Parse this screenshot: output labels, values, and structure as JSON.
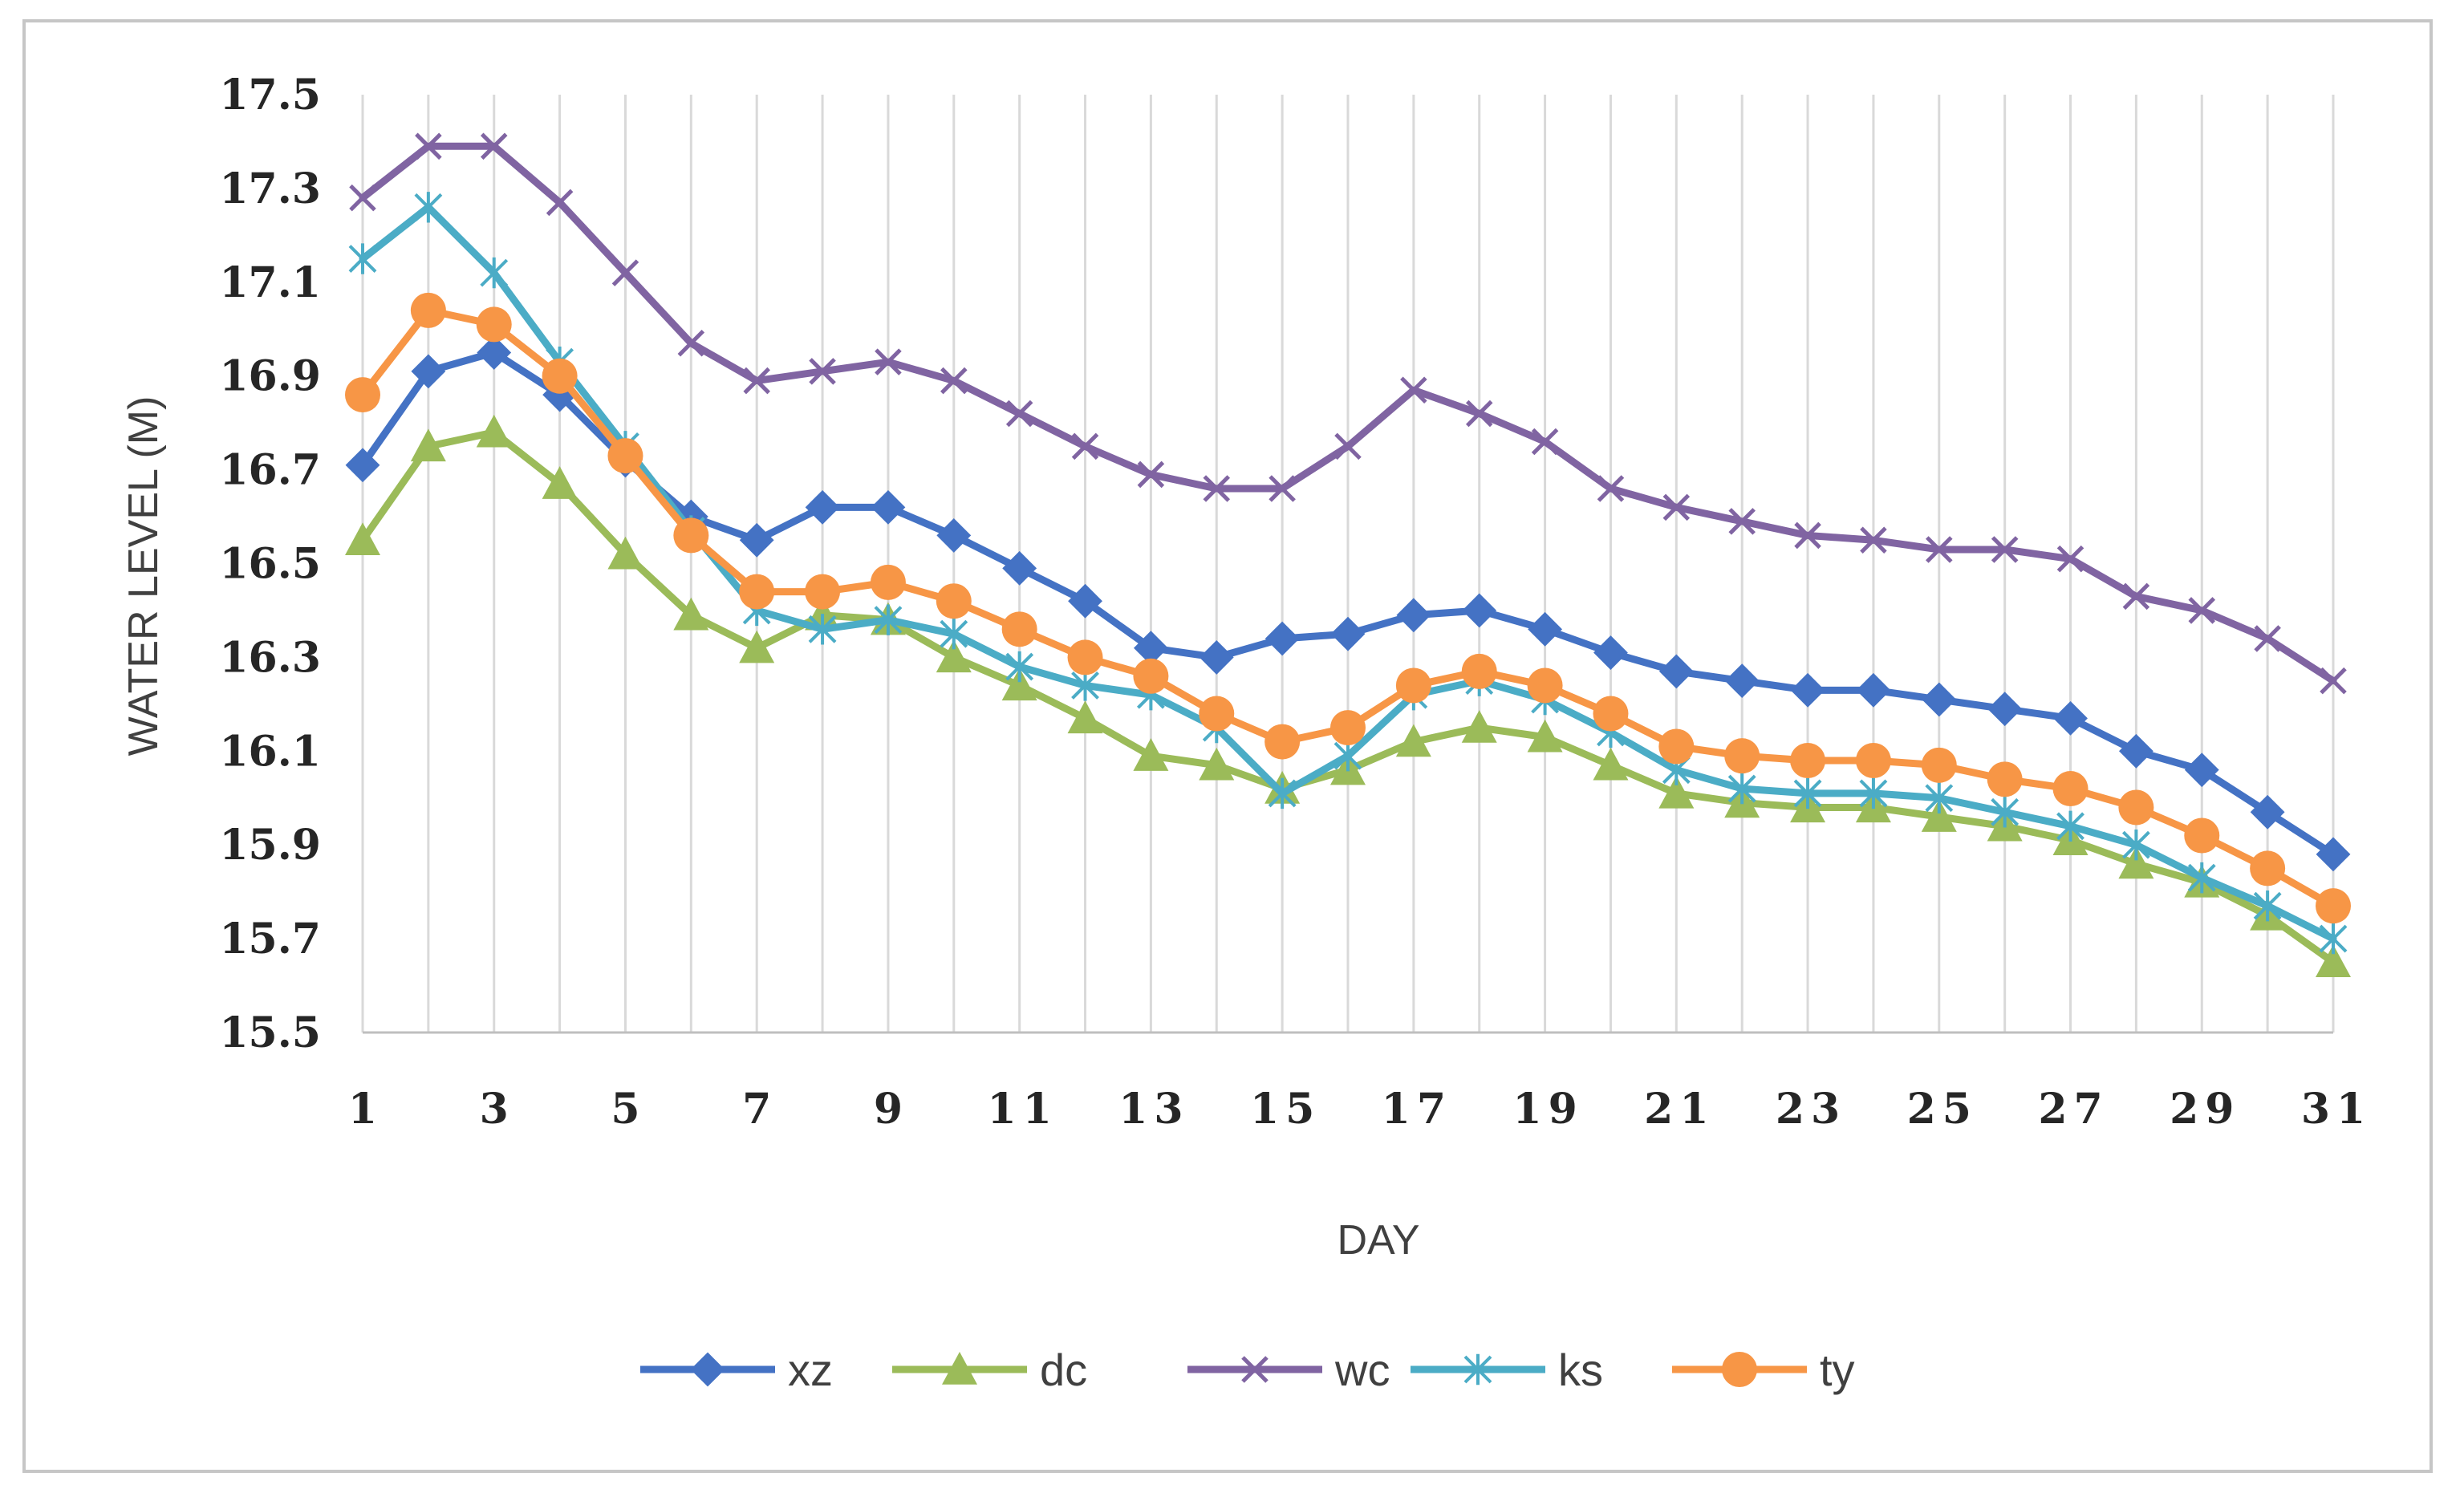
{
  "chart_data": {
    "type": "line",
    "title": "",
    "xlabel": "DAY",
    "ylabel": "WATER LEVEL (M)",
    "ylim": [
      15.5,
      17.5
    ],
    "yticks": [
      "15.5",
      "15.7",
      "15.9",
      "16.1",
      "16.3",
      "16.5",
      "16.7",
      "16.9",
      "17.1",
      "17.3",
      "17.5"
    ],
    "x": [
      1,
      2,
      3,
      4,
      5,
      6,
      7,
      8,
      9,
      10,
      11,
      12,
      13,
      14,
      15,
      16,
      17,
      18,
      19,
      20,
      21,
      22,
      23,
      24,
      25,
      26,
      27,
      28,
      29,
      30,
      31
    ],
    "xtick_labels": [
      "1",
      "3",
      "5",
      "7",
      "9",
      "11",
      "13",
      "15",
      "17",
      "19",
      "21",
      "23",
      "25",
      "27",
      "29",
      "31"
    ],
    "grid": "vertical",
    "legend_position": "bottom",
    "series": [
      {
        "name": "xz",
        "color": "#4472c4",
        "marker": "diamond",
        "values": [
          16.71,
          16.91,
          16.95,
          16.86,
          16.72,
          16.6,
          16.55,
          16.62,
          16.62,
          16.56,
          16.49,
          16.42,
          16.32,
          16.3,
          16.34,
          16.35,
          16.39,
          16.4,
          16.36,
          16.31,
          16.27,
          16.25,
          16.23,
          16.23,
          16.21,
          16.19,
          16.17,
          16.1,
          16.06,
          15.97,
          15.88
        ]
      },
      {
        "name": "dc",
        "color": "#9bbb59",
        "marker": "triangle",
        "values": [
          16.55,
          16.75,
          16.78,
          16.67,
          16.52,
          16.39,
          16.32,
          16.39,
          16.38,
          16.3,
          16.24,
          16.17,
          16.09,
          16.07,
          16.02,
          16.06,
          16.12,
          16.15,
          16.13,
          16.07,
          16.01,
          15.99,
          15.98,
          15.98,
          15.96,
          15.94,
          15.91,
          15.86,
          15.82,
          15.75,
          15.65
        ]
      },
      {
        "name": "wc",
        "color": "#8064a2",
        "marker": "x",
        "values": [
          17.28,
          17.39,
          17.39,
          17.27,
          17.12,
          16.97,
          16.89,
          16.91,
          16.93,
          16.89,
          16.82,
          16.75,
          16.69,
          16.66,
          16.66,
          16.75,
          16.87,
          16.82,
          16.76,
          16.66,
          16.62,
          16.59,
          16.56,
          16.55,
          16.53,
          16.53,
          16.51,
          16.43,
          16.4,
          16.34,
          16.25
        ]
      },
      {
        "name": "ks",
        "color": "#4bacc6",
        "marker": "star",
        "values": [
          17.15,
          17.26,
          17.12,
          16.93,
          16.75,
          16.57,
          16.4,
          16.36,
          16.38,
          16.35,
          16.28,
          16.24,
          16.22,
          16.15,
          16.01,
          16.09,
          16.22,
          16.25,
          16.21,
          16.14,
          16.06,
          16.02,
          16.01,
          16.01,
          16.0,
          15.97,
          15.94,
          15.9,
          15.83,
          15.77,
          15.7
        ]
      },
      {
        "name": "ty",
        "color": "#f79646",
        "marker": "circle",
        "values": [
          16.86,
          17.04,
          17.01,
          16.9,
          16.73,
          16.56,
          16.44,
          16.44,
          16.46,
          16.42,
          16.36,
          16.3,
          16.26,
          16.18,
          16.12,
          16.15,
          16.24,
          16.27,
          16.24,
          16.18,
          16.11,
          16.09,
          16.08,
          16.08,
          16.07,
          16.04,
          16.02,
          15.98,
          15.92,
          15.85,
          15.77
        ]
      }
    ]
  }
}
